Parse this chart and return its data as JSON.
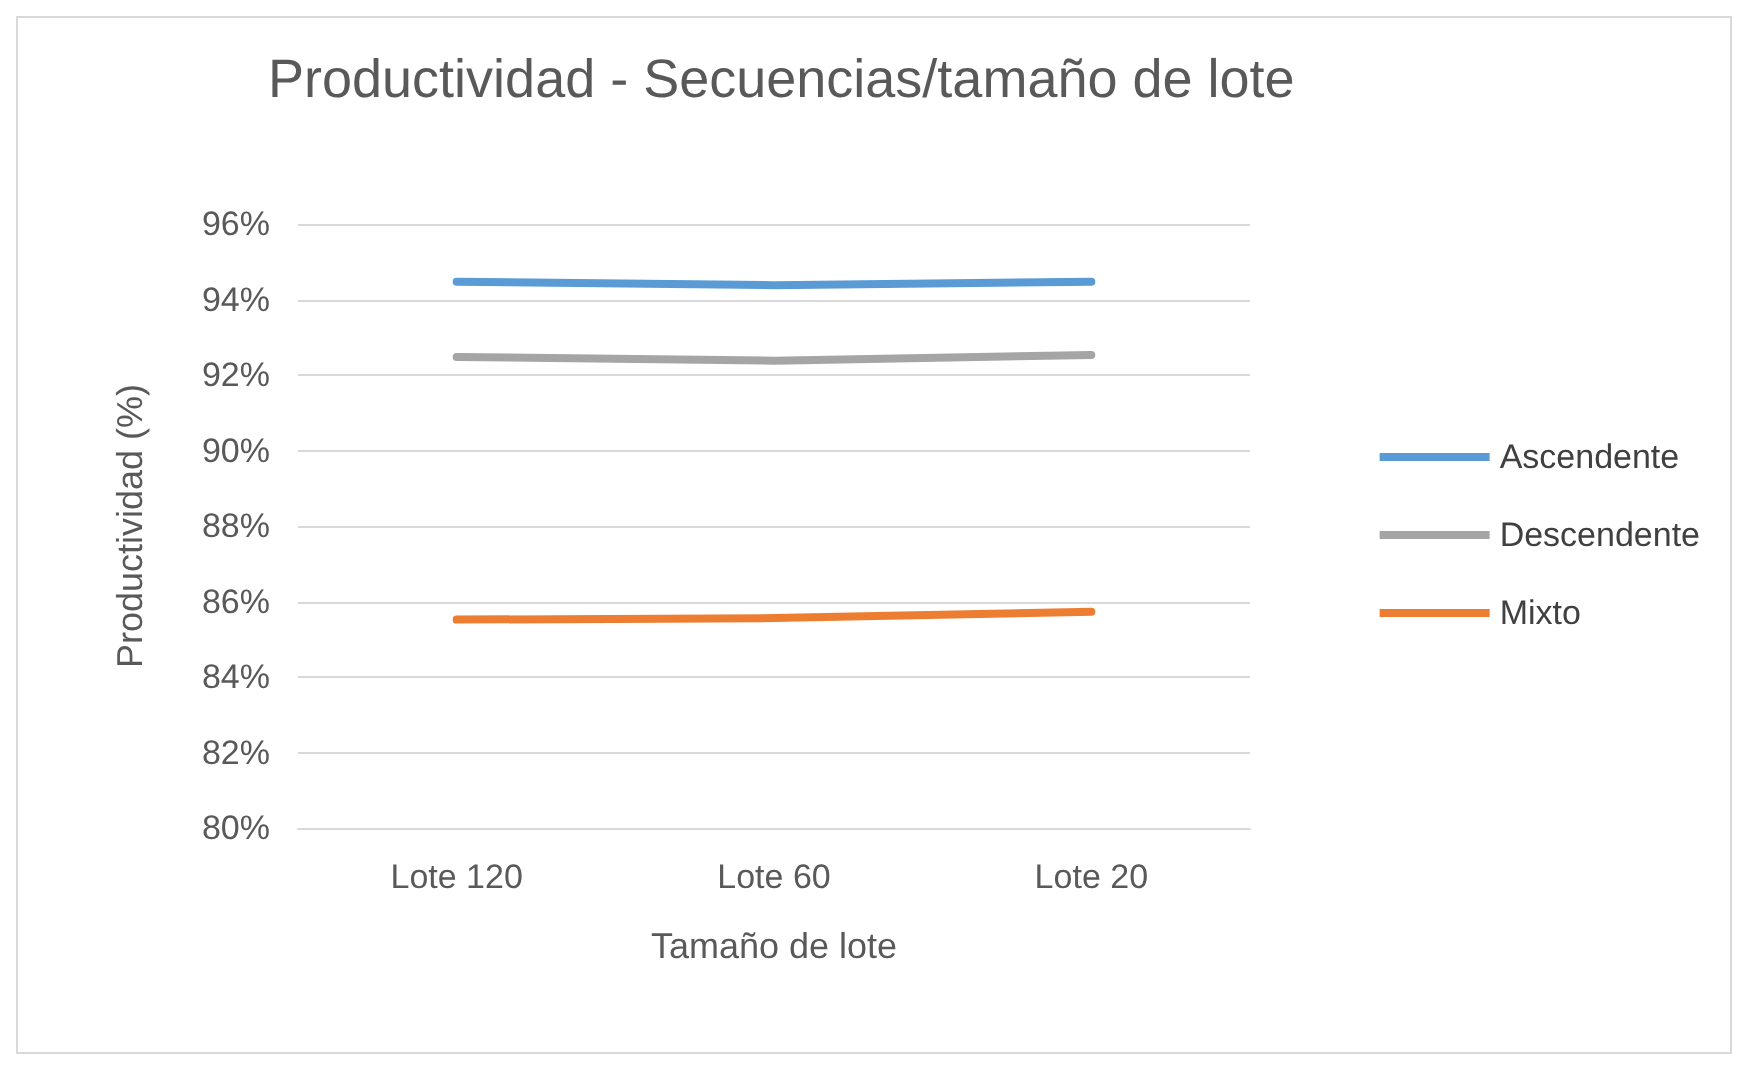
{
  "chart_data": {
    "type": "line",
    "title": "Productividad - Secuencias/tamaño de lote",
    "xlabel": "Tamaño de lote",
    "ylabel": "Productividad (%)",
    "categories": [
      "Lote 120",
      "Lote 60",
      "Lote 20"
    ],
    "series": [
      {
        "name": "Ascendente",
        "color": "#5b9bd5",
        "values": [
          94.47,
          94.38,
          94.47
        ]
      },
      {
        "name": "Descendente",
        "color": "#a5a5a5",
        "values": [
          92.48,
          92.38,
          92.53
        ]
      },
      {
        "name": "Mixto",
        "color": "#ed7d31",
        "values": [
          85.52,
          85.56,
          85.73
        ]
      }
    ],
    "ylim": [
      80,
      96
    ],
    "yticks": [
      {
        "value": 80,
        "label": "80%"
      },
      {
        "value": 82,
        "label": "82%"
      },
      {
        "value": 84,
        "label": "84%"
      },
      {
        "value": 86,
        "label": "86%"
      },
      {
        "value": 88,
        "label": "88%"
      },
      {
        "value": 90,
        "label": "90%"
      },
      {
        "value": 92,
        "label": "92%"
      },
      {
        "value": 94,
        "label": "94%"
      },
      {
        "value": 96,
        "label": "96%"
      }
    ],
    "grid": "y",
    "legend": "right",
    "marker": "none",
    "line_style": "solid"
  }
}
